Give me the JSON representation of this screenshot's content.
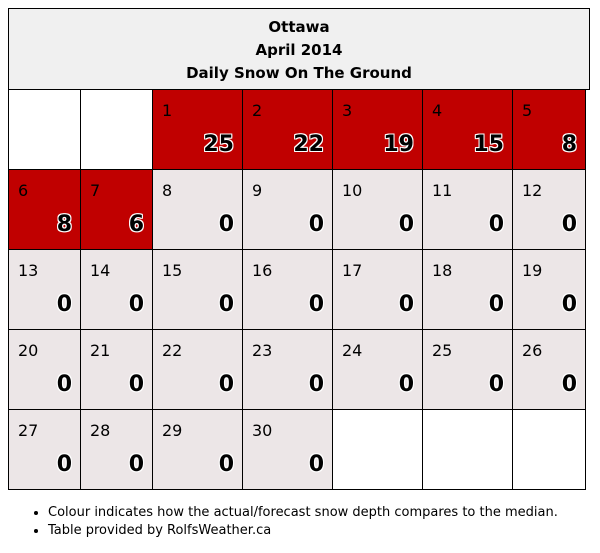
{
  "header": {
    "city": "Ottawa",
    "month": "April 2014",
    "title": "Daily Snow On The Ground"
  },
  "colors": {
    "above_median": "#c00000",
    "normal": "#ece6e7",
    "blank": "#ffffff"
  },
  "calendar": {
    "leading_blanks": 2,
    "days": [
      {
        "day": "1",
        "value": "25",
        "status": "above"
      },
      {
        "day": "2",
        "value": "22",
        "status": "above"
      },
      {
        "day": "3",
        "value": "19",
        "status": "above"
      },
      {
        "day": "4",
        "value": "15",
        "status": "above"
      },
      {
        "day": "5",
        "value": "8",
        "status": "above"
      },
      {
        "day": "6",
        "value": "8",
        "status": "above"
      },
      {
        "day": "7",
        "value": "6",
        "status": "above"
      },
      {
        "day": "8",
        "value": "0",
        "status": "normal"
      },
      {
        "day": "9",
        "value": "0",
        "status": "normal"
      },
      {
        "day": "10",
        "value": "0",
        "status": "normal"
      },
      {
        "day": "11",
        "value": "0",
        "status": "normal"
      },
      {
        "day": "12",
        "value": "0",
        "status": "normal"
      },
      {
        "day": "13",
        "value": "0",
        "status": "normal"
      },
      {
        "day": "14",
        "value": "0",
        "status": "normal"
      },
      {
        "day": "15",
        "value": "0",
        "status": "normal"
      },
      {
        "day": "16",
        "value": "0",
        "status": "normal"
      },
      {
        "day": "17",
        "value": "0",
        "status": "normal"
      },
      {
        "day": "18",
        "value": "0",
        "status": "normal"
      },
      {
        "day": "19",
        "value": "0",
        "status": "normal"
      },
      {
        "day": "20",
        "value": "0",
        "status": "normal"
      },
      {
        "day": "21",
        "value": "0",
        "status": "normal"
      },
      {
        "day": "22",
        "value": "0",
        "status": "normal"
      },
      {
        "day": "23",
        "value": "0",
        "status": "normal"
      },
      {
        "day": "24",
        "value": "0",
        "status": "normal"
      },
      {
        "day": "25",
        "value": "0",
        "status": "normal"
      },
      {
        "day": "26",
        "value": "0",
        "status": "normal"
      },
      {
        "day": "27",
        "value": "0",
        "status": "normal"
      },
      {
        "day": "28",
        "value": "0",
        "status": "normal"
      },
      {
        "day": "29",
        "value": "0",
        "status": "normal"
      },
      {
        "day": "30",
        "value": "0",
        "status": "normal"
      }
    ],
    "trailing_blanks": 3
  },
  "notes": [
    "Colour indicates how the actual/forecast snow depth compares to the median.",
    "Table provided by RolfsWeather.ca"
  ]
}
